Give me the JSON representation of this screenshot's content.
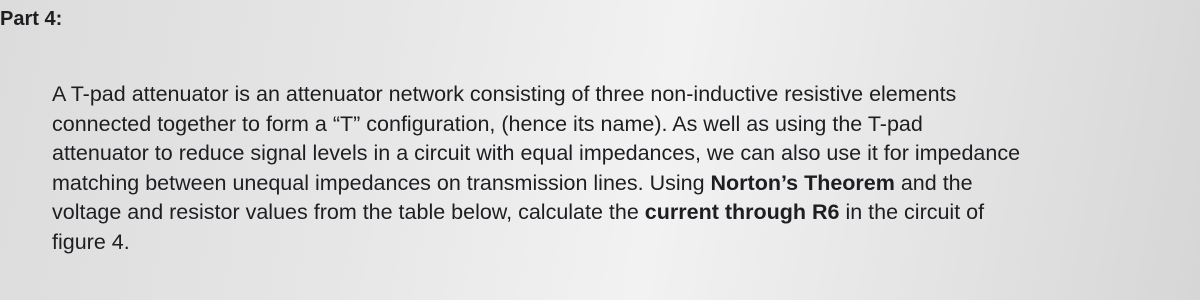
{
  "heading": "Part 4:",
  "paragraph": {
    "lines": [
      {
        "runs": [
          {
            "text": "A T-pad attenuator is an attenuator network consisting of three non-inductive resistive elements"
          }
        ]
      },
      {
        "runs": [
          {
            "text": "connected together to form a “T” configuration, (hence its name). As well as using the T-pad"
          }
        ]
      },
      {
        "runs": [
          {
            "text": "attenuator to reduce signal levels in a circuit with equal impedances, we can also use it for impedance"
          }
        ]
      },
      {
        "runs": [
          {
            "text": "matching between unequal impedances on transmission lines. Using "
          },
          {
            "text": "Norton’s Theorem",
            "bold": true
          },
          {
            "text": " and the"
          }
        ]
      },
      {
        "runs": [
          {
            "text": "voltage and resistor values from the table below, calculate the "
          },
          {
            "text": "current through R6",
            "bold": true
          },
          {
            "text": " in the circuit of"
          }
        ]
      },
      {
        "runs": [
          {
            "text": "figure 4."
          }
        ]
      }
    ]
  }
}
